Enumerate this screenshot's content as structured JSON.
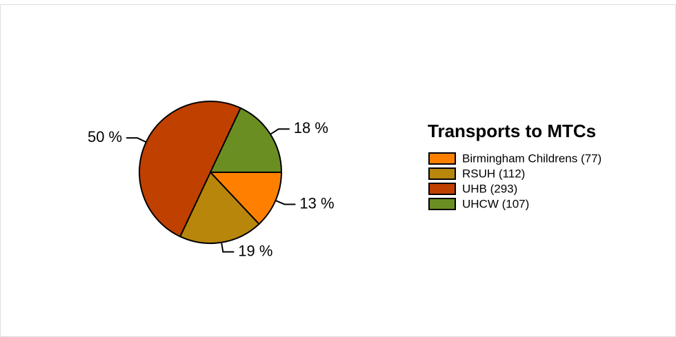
{
  "chart_data": {
    "type": "pie",
    "legend_title": "Transports to MTCs",
    "categories": [
      "Birmingham Childrens (77)",
      "RSUH (112)",
      "UHB (293)",
      "UHCW (107)"
    ],
    "values": [
      13,
      19,
      50,
      18
    ],
    "value_labels": [
      "13 %",
      "19 %",
      "50 %",
      "18 %"
    ],
    "colors": [
      "#ff8000",
      "#b8860b",
      "#c04000",
      "#6b8e23"
    ],
    "legend": "right"
  }
}
